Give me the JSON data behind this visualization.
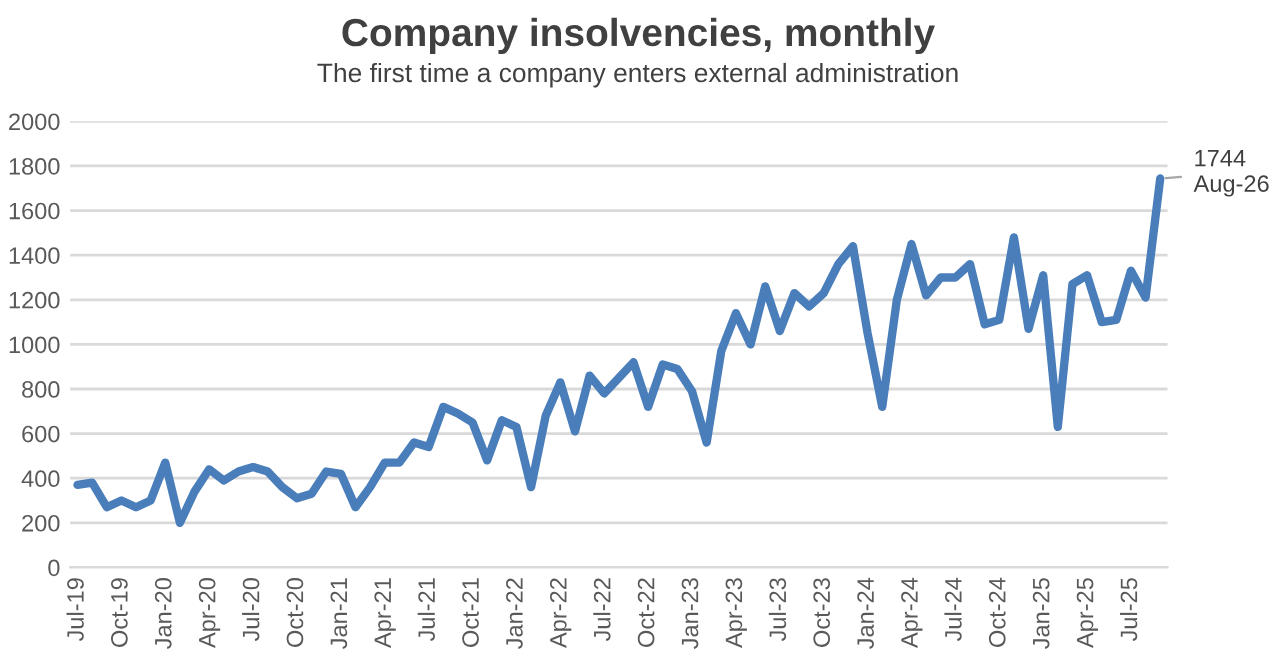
{
  "chart_data": {
    "type": "line",
    "title": "Company insolvencies, monthly",
    "subtitle": "The first time a company enters external administration",
    "categories": [
      "Jul-19",
      null,
      null,
      "Oct-19",
      null,
      null,
      "Jan-20",
      null,
      null,
      "Apr-20",
      null,
      null,
      "Jul-20",
      null,
      null,
      "Oct-20",
      null,
      null,
      "Jan-21",
      null,
      null,
      "Apr-21",
      null,
      null,
      "Jul-21",
      null,
      null,
      "Oct-21",
      null,
      null,
      "Jan-22",
      null,
      null,
      "Apr-22",
      null,
      null,
      "Jul-22",
      null,
      null,
      "Oct-22",
      null,
      null,
      "Jan-23",
      null,
      null,
      "Apr-23",
      null,
      null,
      "Jul-23",
      null,
      null,
      "Oct-23",
      null,
      null,
      "Jan-24",
      null,
      null,
      "Apr-24",
      null,
      null,
      "Jul-24",
      null,
      null,
      "Oct-24",
      null,
      null,
      "Jan-25",
      null,
      null,
      "Apr-25",
      null,
      null,
      "Jul-25",
      null,
      null
    ],
    "series": [
      {
        "color": "#4a7ebb",
        "values": [
          370,
          380,
          270,
          300,
          270,
          300,
          470,
          200,
          340,
          440,
          390,
          430,
          450,
          430,
          360,
          310,
          330,
          430,
          420,
          270,
          360,
          470,
          470,
          560,
          540,
          720,
          690,
          650,
          480,
          660,
          630,
          360,
          680,
          830,
          610,
          860,
          780,
          850,
          920,
          720,
          910,
          890,
          790,
          560,
          970,
          1140,
          1000,
          1260,
          1060,
          1230,
          1170,
          1230,
          1360,
          1440,
          1050,
          720,
          1200,
          1450,
          1220,
          1300,
          1300,
          1360,
          1090,
          1110,
          1480,
          1070,
          1310,
          630,
          1270,
          1310,
          1100,
          1110,
          1330,
          1210,
          1744
        ]
      }
    ],
    "ylim": [
      0,
      2000
    ],
    "yticks": [
      0,
      200,
      400,
      600,
      800,
      1000,
      1200,
      1400,
      1600,
      1800,
      2000
    ],
    "grid": "y",
    "legend": false,
    "annotations": [
      "1744\nAug-26"
    ]
  }
}
